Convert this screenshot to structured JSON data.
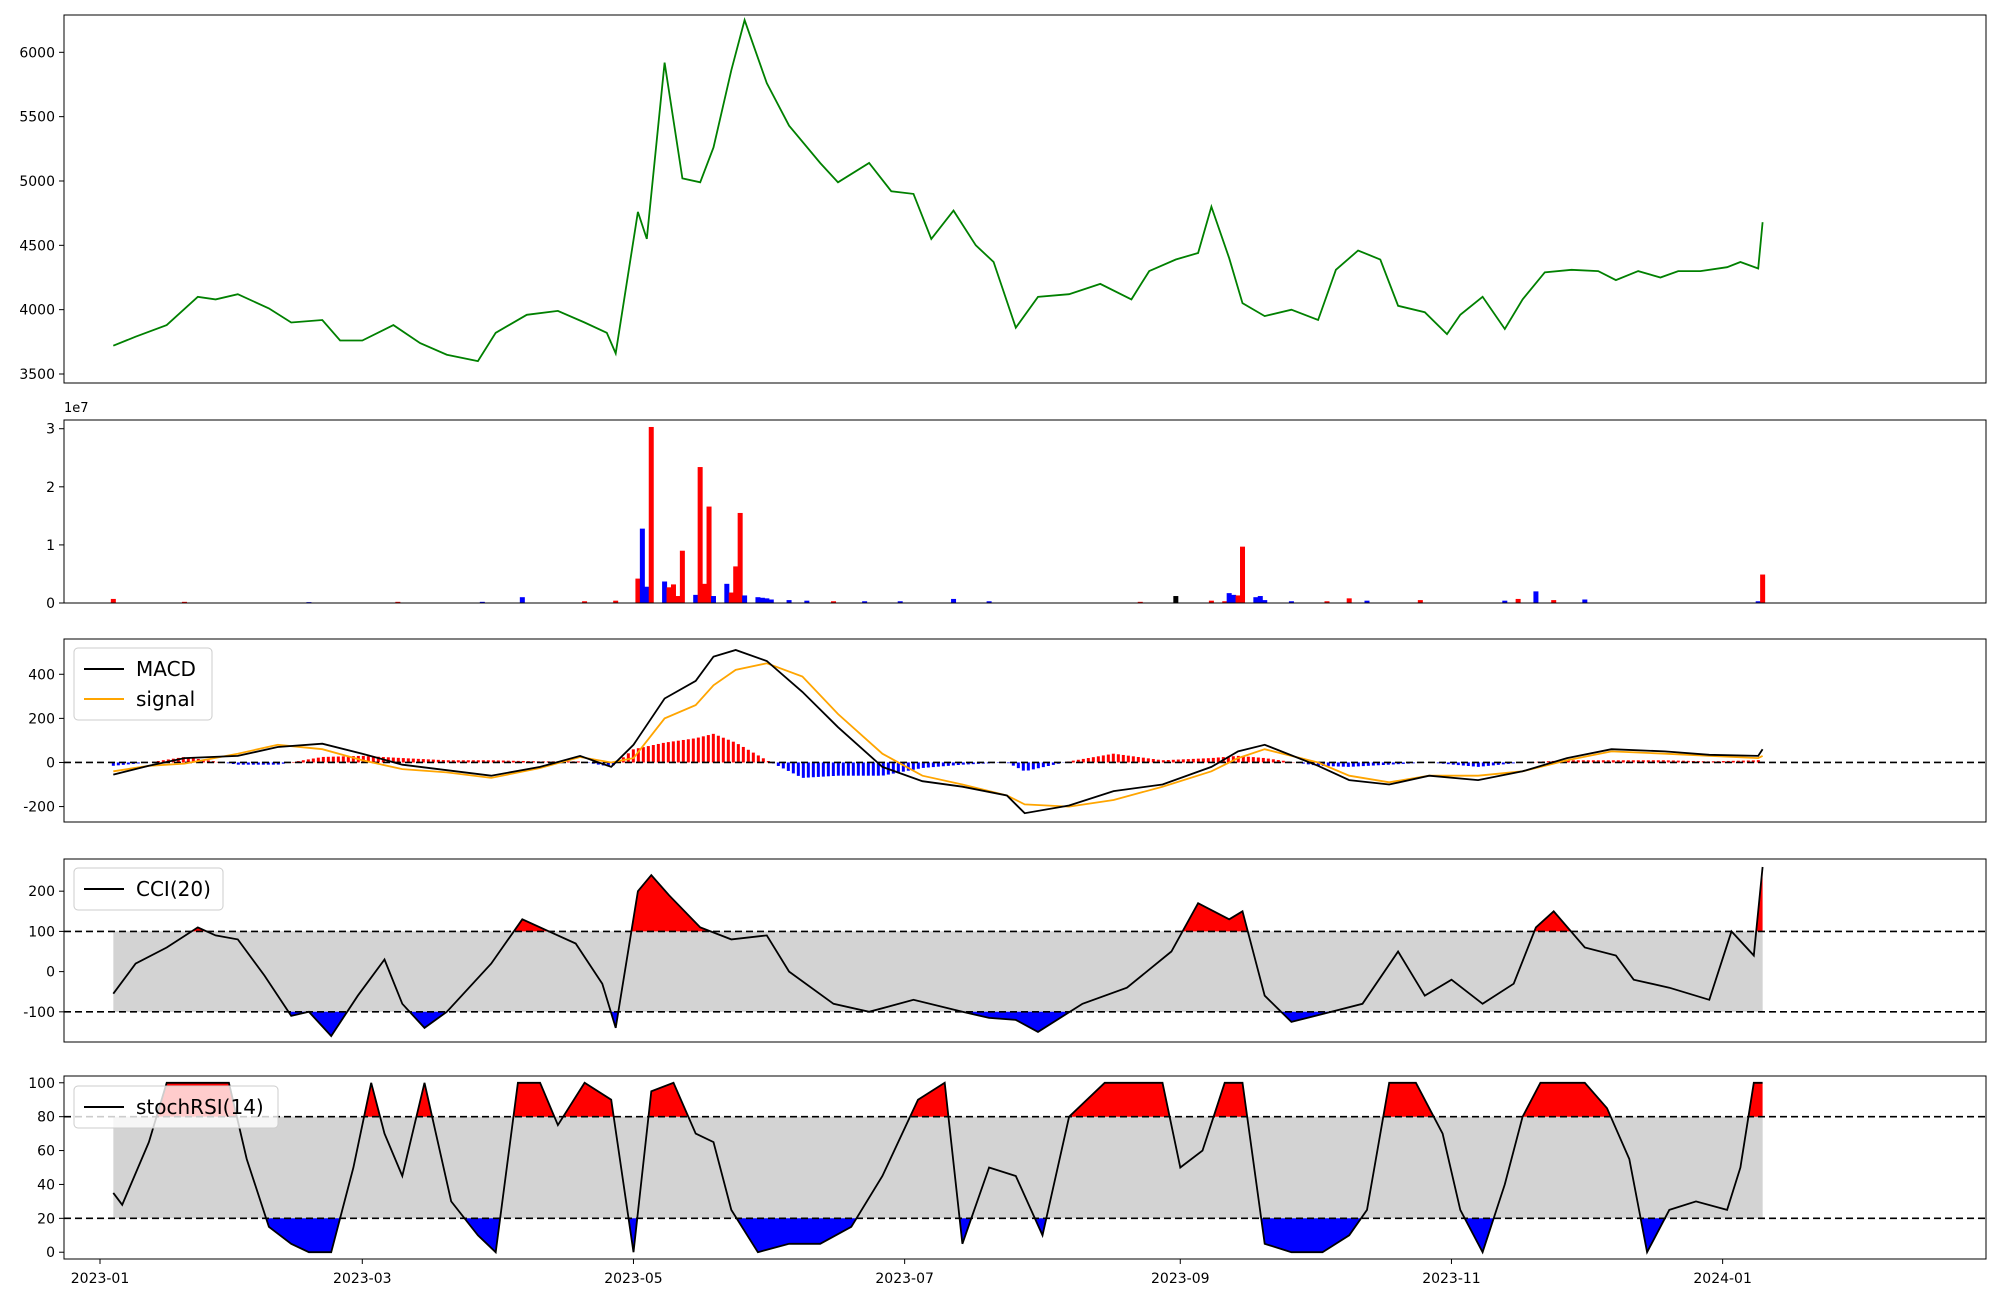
{
  "colors": {
    "price": "#008000",
    "up": "#ff0000",
    "down": "#0000ff",
    "macd": "#000000",
    "signal": "#ffa500",
    "band": "#d3d3d3"
  },
  "chart_data": [
    {
      "type": "line",
      "name": "price",
      "ylim": [
        3430,
        6290
      ],
      "yticks": [
        3500,
        4000,
        4500,
        5000,
        5500,
        6000
      ],
      "grid": false,
      "x": [
        "2023-01-04",
        "2023-01-09",
        "2023-01-16",
        "2023-01-23",
        "2023-01-27",
        "2023-02-01",
        "2023-02-08",
        "2023-02-13",
        "2023-02-20",
        "2023-02-24",
        "2023-03-01",
        "2023-03-08",
        "2023-03-14",
        "2023-03-20",
        "2023-03-27",
        "2023-03-31",
        "2023-04-07",
        "2023-04-14",
        "2023-04-20",
        "2023-04-25",
        "2023-04-27",
        "2023-05-02",
        "2023-05-04",
        "2023-05-08",
        "2023-05-12",
        "2023-05-16",
        "2023-05-19",
        "2023-05-23",
        "2023-05-26",
        "2023-05-31",
        "2023-06-05",
        "2023-06-12",
        "2023-06-16",
        "2023-06-23",
        "2023-06-28",
        "2023-07-03",
        "2023-07-07",
        "2023-07-12",
        "2023-07-17",
        "2023-07-21",
        "2023-07-26",
        "2023-07-31",
        "2023-08-07",
        "2023-08-14",
        "2023-08-21",
        "2023-08-25",
        "2023-08-31",
        "2023-09-05",
        "2023-09-08",
        "2023-09-12",
        "2023-09-15",
        "2023-09-20",
        "2023-09-26",
        "2023-10-02",
        "2023-10-06",
        "2023-10-11",
        "2023-10-16",
        "2023-10-20",
        "2023-10-26",
        "2023-10-31",
        "2023-11-03",
        "2023-11-08",
        "2023-11-13",
        "2023-11-17",
        "2023-11-22",
        "2023-11-28",
        "2023-12-04",
        "2023-12-08",
        "2023-12-13",
        "2023-12-18",
        "2023-12-22",
        "2023-12-27",
        "2024-01-02",
        "2024-01-05",
        "2024-01-09",
        "2024-01-10"
      ],
      "values": [
        3720,
        3790,
        3880,
        4100,
        4080,
        4120,
        4010,
        3900,
        3920,
        3760,
        3760,
        3880,
        3740,
        3650,
        3600,
        3820,
        3960,
        3990,
        3900,
        3820,
        3660,
        4760,
        4550,
        5920,
        5020,
        4990,
        5260,
        5860,
        6250,
        5760,
        5430,
        5140,
        4990,
        5140,
        4920,
        4900,
        4550,
        4770,
        4500,
        4370,
        3860,
        4100,
        4120,
        4200,
        4080,
        4300,
        4390,
        4440,
        4800,
        4400,
        4050,
        3950,
        4000,
        3920,
        4310,
        4460,
        4390,
        4030,
        3980,
        3810,
        3960,
        4100,
        3850,
        4080,
        4290,
        4310,
        4300,
        4230,
        4300,
        4250,
        4300,
        4300,
        4330,
        4370,
        4320,
        4680
      ]
    },
    {
      "type": "bar",
      "name": "volume",
      "ylim": [
        0,
        31500000
      ],
      "yticks": [
        0,
        10000000,
        20000000,
        30000000
      ],
      "ytick_labels": [
        "0",
        "1",
        "2",
        "3"
      ],
      "offset_label": "1e7",
      "x": [
        "2023-01-04",
        "2023-01-20",
        "2023-02-17",
        "2023-03-09",
        "2023-03-28",
        "2023-04-06",
        "2023-04-20",
        "2023-04-27",
        "2023-05-02",
        "2023-05-03",
        "2023-05-04",
        "2023-05-05",
        "2023-05-08",
        "2023-05-09",
        "2023-05-10",
        "2023-05-11",
        "2023-05-12",
        "2023-05-15",
        "2023-05-16",
        "2023-05-17",
        "2023-05-18",
        "2023-05-19",
        "2023-05-22",
        "2023-05-23",
        "2023-05-24",
        "2023-05-25",
        "2023-05-26",
        "2023-05-29",
        "2023-05-30",
        "2023-05-31",
        "2023-06-01",
        "2023-06-05",
        "2023-06-09",
        "2023-06-15",
        "2023-06-22",
        "2023-06-30",
        "2023-07-12",
        "2023-07-20",
        "2023-08-23",
        "2023-08-31",
        "2023-09-08",
        "2023-09-11",
        "2023-09-12",
        "2023-09-13",
        "2023-09-14",
        "2023-09-15",
        "2023-09-18",
        "2023-09-19",
        "2023-09-20",
        "2023-09-26",
        "2023-10-04",
        "2023-10-09",
        "2023-10-13",
        "2023-10-25",
        "2023-11-13",
        "2023-11-16",
        "2023-11-20",
        "2023-11-24",
        "2023-12-01",
        "2024-01-09",
        "2024-01-10"
      ],
      "values": [
        700000,
        200000,
        150000,
        200000,
        200000,
        1000000,
        300000,
        400000,
        4200000,
        12800000,
        2800000,
        30300000,
        3700000,
        2700000,
        3200000,
        1200000,
        9000000,
        1400000,
        23400000,
        3300000,
        16600000,
        1200000,
        3300000,
        1800000,
        6300000,
        15500000,
        1300000,
        1000000,
        900000,
        800000,
        600000,
        500000,
        400000,
        300000,
        300000,
        300000,
        700000,
        300000,
        200000,
        1200000,
        400000,
        300000,
        1700000,
        1400000,
        1300000,
        9700000,
        1000000,
        1200000,
        500000,
        300000,
        300000,
        800000,
        400000,
        500000,
        400000,
        700000,
        2000000,
        500000,
        600000,
        300000,
        4900000
      ],
      "series_color": [
        "up",
        "up",
        "down",
        "up",
        "down",
        "down",
        "up",
        "up",
        "up",
        "down",
        "down",
        "up",
        "down",
        "up",
        "up",
        "up",
        "up",
        "down",
        "up",
        "up",
        "up",
        "down",
        "down",
        "up",
        "up",
        "up",
        "down",
        "down",
        "down",
        "down",
        "down",
        "down",
        "down",
        "up",
        "down",
        "down",
        "down",
        "down",
        "up",
        "macd",
        "up",
        "up",
        "down",
        "down",
        "up",
        "up",
        "down",
        "down",
        "down",
        "down",
        "up",
        "up",
        "down",
        "up",
        "down",
        "up",
        "down",
        "up",
        "down",
        "down",
        "up"
      ]
    },
    {
      "type": "line",
      "name": "macd-panel",
      "ylim": [
        -270,
        560
      ],
      "yticks": [
        -200,
        0,
        200,
        400
      ],
      "legend": [
        "MACD",
        "signal"
      ],
      "legend_position": "top-left",
      "hlines": [
        0
      ],
      "x": [
        "2023-01-04",
        "2023-01-12",
        "2023-01-20",
        "2023-02-01",
        "2023-02-10",
        "2023-02-20",
        "2023-03-01",
        "2023-03-10",
        "2023-03-20",
        "2023-03-30",
        "2023-04-10",
        "2023-04-19",
        "2023-04-26",
        "2023-05-01",
        "2023-05-08",
        "2023-05-15",
        "2023-05-19",
        "2023-05-24",
        "2023-05-31",
        "2023-06-08",
        "2023-06-16",
        "2023-06-26",
        "2023-07-05",
        "2023-07-14",
        "2023-07-24",
        "2023-07-28",
        "2023-08-07",
        "2023-08-17",
        "2023-08-28",
        "2023-09-08",
        "2023-09-14",
        "2023-09-20",
        "2023-10-02",
        "2023-10-09",
        "2023-10-18",
        "2023-10-27",
        "2023-11-07",
        "2023-11-17",
        "2023-11-27",
        "2023-12-07",
        "2023-12-19",
        "2023-12-29",
        "2024-01-09",
        "2024-01-10"
      ],
      "series": [
        {
          "name": "MACD",
          "values": [
            -55,
            -15,
            20,
            30,
            70,
            85,
            40,
            -10,
            -35,
            -60,
            -20,
            30,
            -20,
            80,
            290,
            370,
            480,
            510,
            460,
            320,
            160,
            -20,
            -85,
            -110,
            -150,
            -230,
            -195,
            -130,
            -100,
            -20,
            50,
            80,
            -15,
            -80,
            -100,
            -60,
            -80,
            -40,
            20,
            60,
            50,
            35,
            30,
            60
          ]
        },
        {
          "name": "signal",
          "values": [
            -40,
            -15,
            -5,
            40,
            80,
            60,
            10,
            -30,
            -45,
            -70,
            -25,
            25,
            0,
            20,
            200,
            260,
            350,
            420,
            450,
            390,
            220,
            40,
            -60,
            -100,
            -150,
            -190,
            -200,
            -170,
            -110,
            -40,
            20,
            60,
            0,
            -60,
            -90,
            -60,
            -60,
            -40,
            10,
            50,
            40,
            30,
            20,
            30
          ]
        }
      ]
    },
    {
      "type": "line",
      "name": "CCI(20)",
      "ylim": [
        -175,
        280
      ],
      "yticks": [
        -100,
        0,
        100,
        200
      ],
      "legend": [
        "CCI(20)"
      ],
      "legend_position": "top-left",
      "hlines": [
        100,
        -100
      ],
      "band": [
        -100,
        100
      ],
      "x": [
        "2023-01-04",
        "2023-01-09",
        "2023-01-16",
        "2023-01-23",
        "2023-01-27",
        "2023-02-01",
        "2023-02-07",
        "2023-02-13",
        "2023-02-17",
        "2023-02-22",
        "2023-02-28",
        "2023-03-06",
        "2023-03-10",
        "2023-03-15",
        "2023-03-20",
        "2023-03-30",
        "2023-04-06",
        "2023-04-12",
        "2023-04-18",
        "2023-04-24",
        "2023-04-27",
        "2023-05-02",
        "2023-05-05",
        "2023-05-09",
        "2023-05-16",
        "2023-05-23",
        "2023-05-31",
        "2023-06-05",
        "2023-06-15",
        "2023-06-23",
        "2023-07-03",
        "2023-07-14",
        "2023-07-20",
        "2023-07-26",
        "2023-07-31",
        "2023-08-10",
        "2023-08-20",
        "2023-08-30",
        "2023-09-05",
        "2023-09-12",
        "2023-09-15",
        "2023-09-20",
        "2023-09-26",
        "2023-10-05",
        "2023-10-12",
        "2023-10-20",
        "2023-10-26",
        "2023-11-01",
        "2023-11-08",
        "2023-11-15",
        "2023-11-20",
        "2023-11-24",
        "2023-12-01",
        "2023-12-08",
        "2023-12-12",
        "2023-12-20",
        "2023-12-29",
        "2024-01-03",
        "2024-01-08",
        "2024-01-10"
      ],
      "values": [
        -55,
        20,
        60,
        110,
        90,
        80,
        -10,
        -110,
        -100,
        -160,
        -60,
        30,
        -80,
        -140,
        -100,
        20,
        130,
        100,
        70,
        -30,
        -140,
        200,
        240,
        190,
        110,
        80,
        90,
        0,
        -80,
        -100,
        -70,
        -100,
        -115,
        -120,
        -150,
        -80,
        -40,
        50,
        170,
        130,
        150,
        -60,
        -125,
        -100,
        -80,
        50,
        -60,
        -20,
        -80,
        -30,
        110,
        150,
        60,
        40,
        -20,
        -40,
        -70,
        100,
        40,
        260
      ]
    },
    {
      "type": "line",
      "name": "stochRSI(14)",
      "ylim": [
        -4,
        104
      ],
      "yticks": [
        0,
        20,
        40,
        60,
        80,
        100
      ],
      "legend": [
        "stochRSI(14)"
      ],
      "legend_position": "top-left",
      "hlines": [
        80,
        20
      ],
      "band": [
        20,
        80
      ],
      "xticks": [
        "2023-01",
        "2023-03",
        "2023-05",
        "2023-07",
        "2023-09",
        "2023-11",
        "2024-01"
      ],
      "x": [
        "2023-01-04",
        "2023-01-06",
        "2023-01-12",
        "2023-01-16",
        "2023-01-20",
        "2023-01-25",
        "2023-01-30",
        "2023-02-03",
        "2023-02-08",
        "2023-02-13",
        "2023-02-17",
        "2023-02-22",
        "2023-02-27",
        "2023-03-03",
        "2023-03-06",
        "2023-03-10",
        "2023-03-15",
        "2023-03-21",
        "2023-03-27",
        "2023-03-31",
        "2023-04-05",
        "2023-04-10",
        "2023-04-14",
        "2023-04-20",
        "2023-04-26",
        "2023-05-01",
        "2023-05-05",
        "2023-05-10",
        "2023-05-15",
        "2023-05-19",
        "2023-05-23",
        "2023-05-29",
        "2023-06-05",
        "2023-06-12",
        "2023-06-19",
        "2023-06-26",
        "2023-07-04",
        "2023-07-10",
        "2023-07-14",
        "2023-07-20",
        "2023-07-26",
        "2023-08-01",
        "2023-08-07",
        "2023-08-15",
        "2023-08-22",
        "2023-08-28",
        "2023-09-01",
        "2023-09-06",
        "2023-09-11",
        "2023-09-15",
        "2023-09-20",
        "2023-09-26",
        "2023-10-03",
        "2023-10-09",
        "2023-10-13",
        "2023-10-18",
        "2023-10-24",
        "2023-10-30",
        "2023-11-03",
        "2023-11-08",
        "2023-11-13",
        "2023-11-17",
        "2023-11-21",
        "2023-11-27",
        "2023-12-01",
        "2023-12-06",
        "2023-12-11",
        "2023-12-15",
        "2023-12-20",
        "2023-12-26",
        "2024-01-02",
        "2024-01-05",
        "2024-01-08",
        "2024-01-10"
      ],
      "values": [
        35,
        28,
        65,
        100,
        100,
        100,
        100,
        55,
        15,
        5,
        0,
        0,
        50,
        100,
        70,
        45,
        100,
        30,
        10,
        0,
        100,
        100,
        75,
        100,
        90,
        0,
        95,
        100,
        70,
        65,
        25,
        0,
        5,
        5,
        15,
        45,
        90,
        100,
        5,
        50,
        45,
        10,
        80,
        100,
        100,
        100,
        50,
        60,
        100,
        100,
        5,
        0,
        0,
        10,
        25,
        100,
        100,
        70,
        25,
        0,
        40,
        80,
        100,
        100,
        100,
        85,
        55,
        0,
        25,
        30,
        25,
        50,
        100,
        100
      ]
    }
  ]
}
